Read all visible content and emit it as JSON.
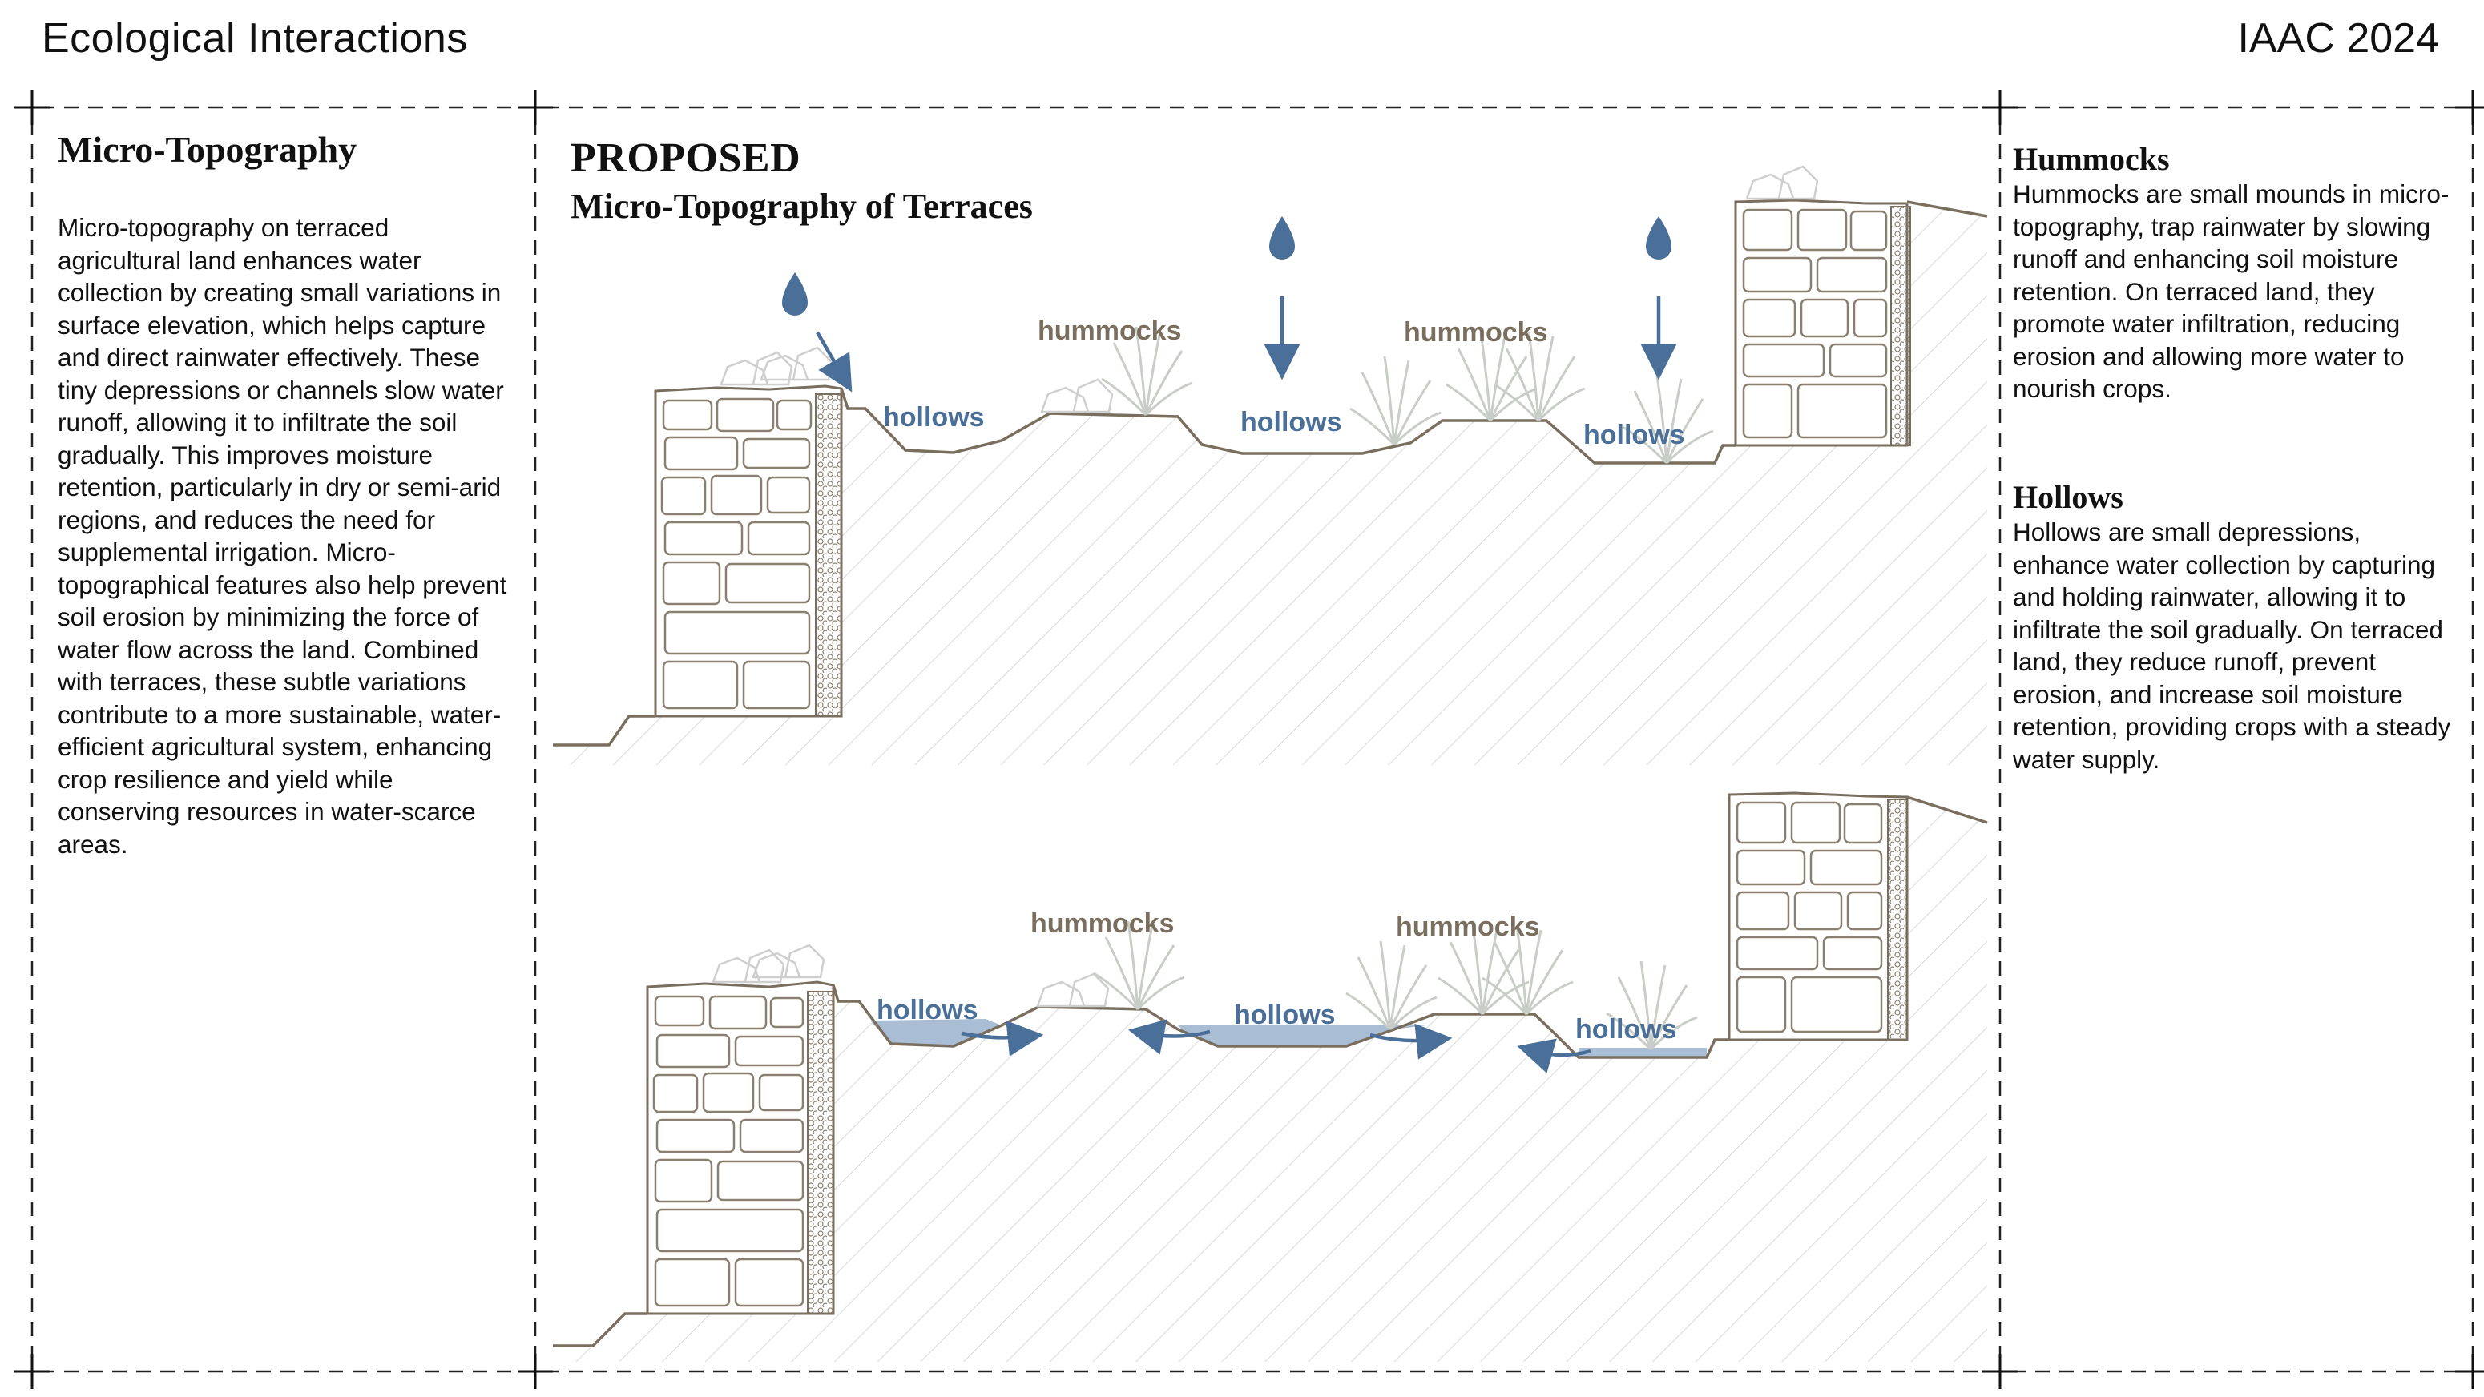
{
  "header": {
    "title": "Ecological Interactions",
    "right": "IAAC 2024"
  },
  "left_panel": {
    "title": "Micro-Topography",
    "body": "Micro-topography on terraced agricultural land enhances water collection by creating small variations in surface elevation, which helps capture and direct rainwater effectively. These tiny depressions or channels slow water runoff, allowing it to infiltrate the soil gradually. This improves moisture retention, particularly in dry or semi-arid regions, and reduces the need for supplemental irrigation. Micro-topographical features also help prevent soil erosion by minimizing the force of water flow across the land. Combined with terraces, these subtle variations contribute to a more sustainable, water-efficient agricultural system, enhancing crop resilience and yield while conserving resources in water-scarce areas."
  },
  "center": {
    "title": "PROPOSED",
    "subtitle": "Micro-Topography of Terraces",
    "labels": {
      "hollows": "hollows",
      "hummocks": "hummocks"
    }
  },
  "right_panel": {
    "hummocks_title": "Hummocks",
    "hummocks_text": "Hummocks are small mounds in micro-topography, trap rainwater by slowing runoff and enhancing soil moisture retention. On terraced land, they promote water infiltration, reducing erosion and allowing more water to nourish crops.",
    "hollows_title": "Hollows",
    "hollows_text": "Hollows are small depressions, enhance water collection by capturing and holding rainwater, allowing it to infiltrate the soil gradually. On terraced land, they reduce runoff, prevent erosion, and increase soil moisture retention, providing crops with a steady water supply."
  },
  "colors": {
    "water": "#4a6f99",
    "soil_line": "#7a6e5e",
    "water_fill": "#a9bdd4",
    "hatch": "#d9d9d9"
  }
}
